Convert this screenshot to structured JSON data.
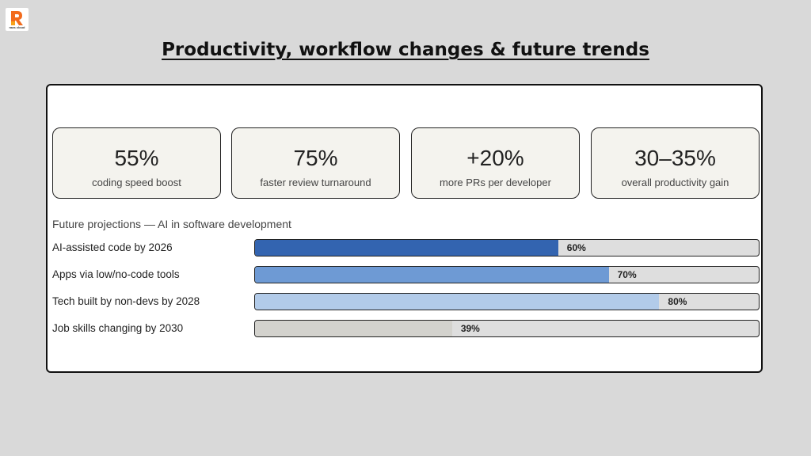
{
  "brand": {
    "name": "raas cloud",
    "accent": "#f26b1d"
  },
  "slide": {
    "title": "Productivity, workflow changes & future trends"
  },
  "stats": [
    {
      "value": "55%",
      "label": "coding speed boost"
    },
    {
      "value": "75%",
      "label": "faster review turnaround"
    },
    {
      "value": "+20%",
      "label": "more PRs per developer"
    },
    {
      "value": "30–35%",
      "label": "overall productivity gain"
    }
  ],
  "chart_data": {
    "type": "bar",
    "orientation": "horizontal",
    "title": "Future projections — AI in software development",
    "categories": [
      "AI-assisted code by 2026",
      "Apps via low/no-code tools",
      "Tech built by non-devs by 2028",
      "Job skills changing by 2030"
    ],
    "values": [
      60,
      70,
      80,
      39
    ],
    "value_labels": [
      "60%",
      "70%",
      "80%",
      "39%"
    ],
    "xlim": [
      0,
      100
    ],
    "colors": [
      "#3364b0",
      "#6e9ad4",
      "#b2cbe9",
      "#d3d2cd"
    ],
    "grid": false,
    "legend": "none"
  }
}
